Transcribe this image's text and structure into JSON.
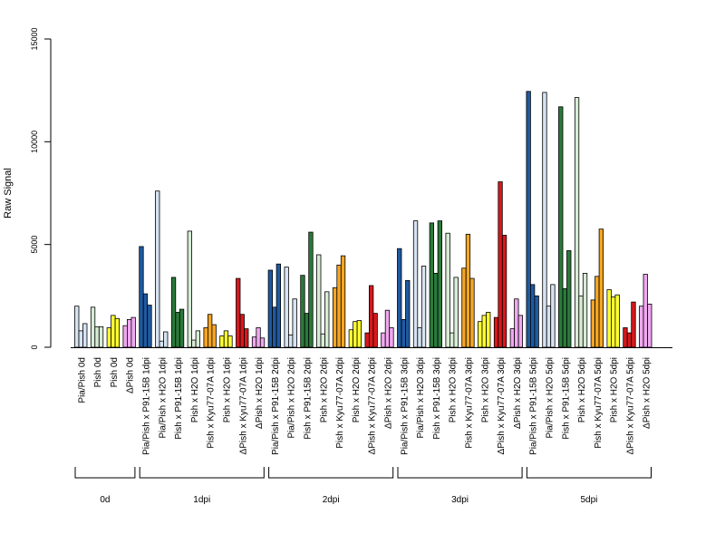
{
  "chart_data": {
    "type": "bar",
    "ylabel": "Raw Signal",
    "ylim": [
      0,
      15000
    ],
    "yticks": [
      0,
      5000,
      10000,
      15000
    ],
    "colors": {
      "dark_blue": "#1f5aa0",
      "light_blue": "#d6e3f3",
      "dark_green": "#2a7a3a",
      "light_green": "#d8ecd5",
      "yellow": "#ffff33",
      "orange": "#f5a623",
      "red": "#d7191c",
      "pink": "#f0a8f0"
    },
    "categories": [
      {
        "label": "Pia/Pish 0d",
        "color": "light_blue",
        "values": [
          2000,
          800,
          1150
        ]
      },
      {
        "label": "Pish 0d",
        "color": "light_green",
        "values": [
          1950,
          1000,
          1000
        ]
      },
      {
        "label": "Pish 0d",
        "color": "yellow",
        "values": [
          950,
          1550,
          1400
        ]
      },
      {
        "label": "ΔPish 0d",
        "color": "pink",
        "values": [
          1050,
          1350,
          1450
        ]
      },
      {
        "label": "Pia/Pish x P91-15B 1dpi",
        "color": "dark_blue",
        "values": [
          4900,
          2600,
          2050
        ]
      },
      {
        "label": "Pia/Pish x H2O 1dpi",
        "color": "light_blue",
        "values": [
          7600,
          300,
          750
        ]
      },
      {
        "label": "Pish x P91-15B 1dpi",
        "color": "dark_green",
        "values": [
          3400,
          1700,
          1850
        ]
      },
      {
        "label": "Pish x H2O 1dpi",
        "color": "light_green",
        "values": [
          5650,
          350,
          800
        ]
      },
      {
        "label": "Pish x Kyu77-07A 1dpi",
        "color": "orange",
        "values": [
          950,
          1600,
          1100
        ]
      },
      {
        "label": "Pish x H2O 1dpi",
        "color": "yellow",
        "values": [
          550,
          800,
          550
        ]
      },
      {
        "label": "ΔPish x Kyu77-07A 1dpi",
        "color": "red",
        "values": [
          3350,
          1600,
          900
        ]
      },
      {
        "label": "ΔPish x H2O 1dpi",
        "color": "pink",
        "values": [
          500,
          950,
          450
        ]
      },
      {
        "label": "Pia/Pish x P91-15B 2dpi",
        "color": "dark_blue",
        "values": [
          3750,
          1950,
          4050
        ]
      },
      {
        "label": "Pia/Pish x H2O 2dpi",
        "color": "light_blue",
        "values": [
          3900,
          600,
          2350
        ]
      },
      {
        "label": "Pish x P91-15B 2dpi",
        "color": "dark_green",
        "values": [
          3500,
          1650,
          5600
        ]
      },
      {
        "label": "Pish x H2O 2dpi",
        "color": "light_green",
        "values": [
          4500,
          650,
          2700
        ]
      },
      {
        "label": "Pish x Kyu77-07A 2dpi",
        "color": "orange",
        "values": [
          2900,
          4000,
          4450
        ]
      },
      {
        "label": "Pish x H2O 2dpi",
        "color": "yellow",
        "values": [
          850,
          1250,
          1300
        ]
      },
      {
        "label": "ΔPish x Kyu77-07A 2dpi",
        "color": "red",
        "values": [
          700,
          3000,
          1650
        ]
      },
      {
        "label": "ΔPish x H2O 2dpi",
        "color": "pink",
        "values": [
          700,
          1800,
          950
        ]
      },
      {
        "label": "Pia/Pish x P91-15B 3dpi",
        "color": "dark_blue",
        "values": [
          4800,
          1350,
          3250
        ]
      },
      {
        "label": "Pia/Pish x H2O 3dpi",
        "color": "light_blue",
        "values": [
          6150,
          950,
          3950
        ]
      },
      {
        "label": "Pish x P91-15B 3dpi",
        "color": "dark_green",
        "values": [
          6050,
          3600,
          6150
        ]
      },
      {
        "label": "Pish x H2O 3dpi",
        "color": "light_green",
        "values": [
          5550,
          700,
          3400
        ]
      },
      {
        "label": "Pish x Kyu77-07A 3dpi",
        "color": "orange",
        "values": [
          3850,
          5500,
          3350
        ]
      },
      {
        "label": "Pish x H2O 3dpi",
        "color": "yellow",
        "values": [
          1250,
          1550,
          1700
        ]
      },
      {
        "label": "ΔPish x Kyu77-07A 3dpi",
        "color": "red",
        "values": [
          1450,
          8050,
          5450
        ]
      },
      {
        "label": "ΔPish x H2O 3dpi",
        "color": "pink",
        "values": [
          900,
          2350,
          1550
        ]
      },
      {
        "label": "Pia/Pish x P91-15B 5dpi",
        "color": "dark_blue",
        "values": [
          12450,
          3050,
          2500
        ]
      },
      {
        "label": "Pia/Pish x H2O 5dpi",
        "color": "light_blue",
        "values": [
          12400,
          2000,
          3050
        ]
      },
      {
        "label": "Pish x P91-15B 5dpi",
        "color": "dark_green",
        "values": [
          11700,
          2850,
          4700
        ]
      },
      {
        "label": "Pish x H2O 5dpi",
        "color": "light_green",
        "values": [
          12150,
          2500,
          3600
        ]
      },
      {
        "label": "Pish x Kyu77-07A 5dpi",
        "color": "orange",
        "values": [
          2300,
          3450,
          5750
        ]
      },
      {
        "label": "Pish x H2O 5dpi",
        "color": "yellow",
        "values": [
          2800,
          2450,
          2550
        ]
      },
      {
        "label": "ΔPish x Kyu77-07A 5dpi",
        "color": "red",
        "values": [
          950,
          700,
          2200
        ]
      },
      {
        "label": "ΔPish x H2O 5dpi",
        "color": "pink",
        "values": [
          2000,
          3550,
          2100
        ]
      }
    ],
    "groups": [
      {
        "label": "0d",
        "first": 0,
        "last": 3
      },
      {
        "label": "1dpi",
        "first": 4,
        "last": 11
      },
      {
        "label": "2dpi",
        "first": 12,
        "last": 19
      },
      {
        "label": "3dpi",
        "first": 20,
        "last": 27
      },
      {
        "label": "5dpi",
        "first": 28,
        "last": 35
      }
    ]
  }
}
